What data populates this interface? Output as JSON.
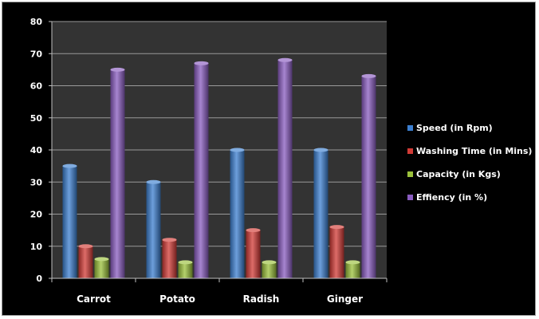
{
  "chart_data": {
    "type": "bar",
    "title": "",
    "xlabel": "",
    "ylabel": "",
    "categories": [
      "Carrot",
      "Potato",
      "Radish",
      "Ginger"
    ],
    "series": [
      {
        "name": "Speed (in Rpm)",
        "color": "#3c7fd0",
        "values": [
          35,
          30,
          40,
          40
        ]
      },
      {
        "name": "Washing Time (in Mins)",
        "color": "#d23b36",
        "values": [
          10,
          12,
          15,
          16
        ]
      },
      {
        "name": "Capacity (in Kgs)",
        "color": "#9bc13b",
        "values": [
          6,
          5,
          5,
          5
        ]
      },
      {
        "name": "Effiency (in %)",
        "color": "#8a5cc0",
        "values": [
          65,
          67,
          68,
          63
        ]
      }
    ],
    "ylim": [
      0,
      80
    ],
    "yticks": [
      0,
      10,
      20,
      30,
      40,
      50,
      60,
      70,
      80
    ],
    "grid": true,
    "legend": "right",
    "plot_background": "#333333"
  }
}
